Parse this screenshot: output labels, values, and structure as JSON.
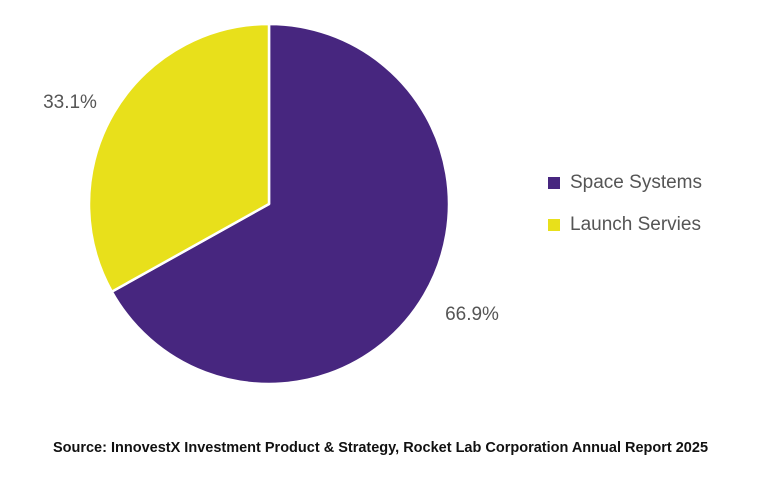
{
  "chart_data": {
    "type": "pie",
    "title": "",
    "slices": [
      {
        "label": "Space Systems",
        "value": 66.9,
        "display": "66.9%",
        "color": "#47267f"
      },
      {
        "label": "Launch Servies",
        "value": 33.1,
        "display": "33.1%",
        "color": "#e8e01b"
      }
    ],
    "start": "12 o'clock",
    "direction": "clockwise",
    "legend": "right"
  },
  "source_note": "Source: InnovestX Investment Product & Strategy, Rocket Lab Corporation Annual Report 2025"
}
